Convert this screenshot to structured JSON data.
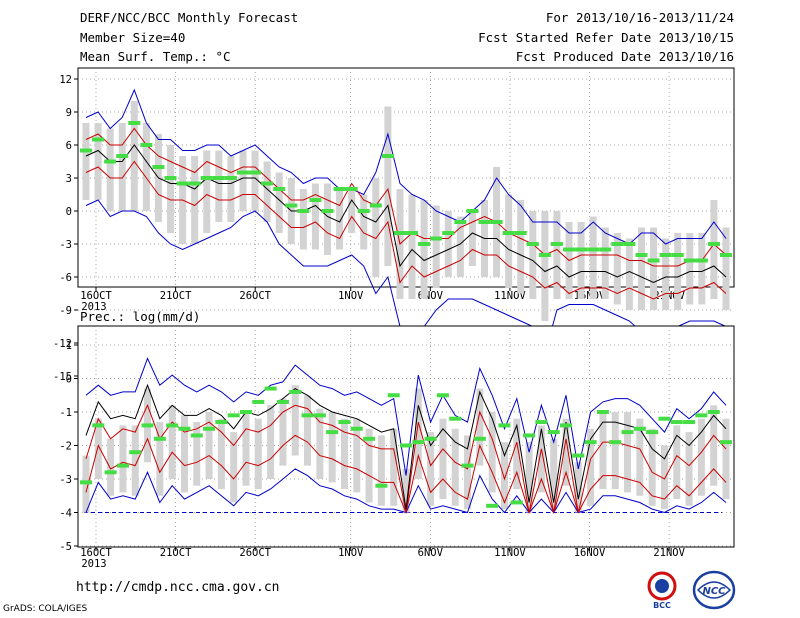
{
  "header": {
    "title": "DERF/NCC/BCC Monthly Forecast",
    "member_size": "Member Size=40",
    "variable": "Mean Surf. Temp.: °C",
    "period": "For 2013/10/16-2013/11/24",
    "started": "Fcst Started Refer Date 2013/10/15",
    "produced": "Fcst Produced Date 2013/10/16"
  },
  "footer": {
    "url": "http://cmdp.ncc.cma.gov.cn",
    "grads": "GrADS: COLA/IGES",
    "logo_bcc": "BCC",
    "logo_ncc": "NCC"
  },
  "colors": {
    "envelope": "#0000cc",
    "inner": "#cc0000",
    "mean": "#000000",
    "box": "#d3d3d3",
    "marker": "#44dd44",
    "grid": "#888888"
  },
  "chart_data": [
    {
      "type": "line",
      "ylabel": "",
      "ylim": [
        -15,
        12
      ],
      "yticks": [
        12,
        9,
        6,
        3,
        0,
        -3,
        -6,
        -9,
        -12,
        -15
      ],
      "x_tick_labels": [
        "16OCT",
        "21OCT",
        "26OCT",
        "1NOV",
        "6NOV",
        "11NOV",
        "16NOV",
        "21NOV"
      ],
      "x_year_label": "2013",
      "x_tick_day_index": [
        0,
        5,
        10,
        16,
        21,
        26,
        31,
        36
      ],
      "grid": true,
      "series": [
        {
          "role": "envelope_upper",
          "values": [
            8.5,
            9,
            7.5,
            8.5,
            11,
            8,
            6.5,
            6.5,
            5.5,
            5.5,
            6,
            6,
            5,
            5.5,
            6,
            5,
            4,
            3.5,
            2.5,
            3,
            3,
            2,
            2,
            1.5,
            3.5,
            7,
            2.5,
            1.5,
            1,
            0,
            -0.5,
            -1,
            0,
            1,
            3,
            1.5,
            0.5,
            -1,
            -1,
            -1,
            -2,
            -2,
            -1,
            -2,
            -2.5,
            -3,
            -2,
            -2,
            -3,
            -2.5,
            -2.5,
            -2.5,
            -1,
            -2.5
          ]
        },
        {
          "role": "inner_upper",
          "values": [
            6.5,
            7,
            6,
            6,
            7.5,
            6,
            5,
            4.5,
            4,
            3.5,
            4.5,
            4,
            3.5,
            4,
            4,
            3,
            2,
            1,
            1,
            1.5,
            1,
            0.5,
            2.5,
            1,
            0.5,
            2,
            -3,
            -2,
            -2.5,
            -2.5,
            -2.5,
            -1.5,
            -1,
            -0.5,
            -1,
            -2,
            -2.5,
            -3,
            -4,
            -3.5,
            -4.5,
            -4,
            -4,
            -4,
            -4,
            -4.5,
            -4.5,
            -5,
            -5,
            -5,
            -4.5,
            -4.5,
            -3,
            -4
          ]
        },
        {
          "role": "mean",
          "values": [
            5,
            5.5,
            4.5,
            4.5,
            6,
            4.5,
            3,
            2.5,
            2.5,
            2,
            3,
            2.5,
            2.5,
            3,
            3,
            2,
            1,
            0,
            0,
            0.5,
            -0.5,
            -1,
            1,
            -0.5,
            -1,
            0.5,
            -5,
            -3.5,
            -4.5,
            -4,
            -3.5,
            -3,
            -2,
            -2.5,
            -2.5,
            -3.5,
            -4,
            -4.5,
            -5.5,
            -5,
            -6,
            -5.5,
            -5.5,
            -5.5,
            -6,
            -5.5,
            -6,
            -6.5,
            -6,
            -6,
            -5.5,
            -5.5,
            -5,
            -6
          ]
        },
        {
          "role": "inner_lower",
          "values": [
            3.5,
            4,
            3,
            3,
            4.5,
            3,
            1.5,
            1,
            1,
            0.5,
            1.5,
            1,
            1,
            1.5,
            1.5,
            0.5,
            -0.5,
            -1.5,
            -1.5,
            -1,
            -2,
            -2.5,
            -0.5,
            -2,
            -2.5,
            -1,
            -6.5,
            -5,
            -6,
            -5.5,
            -5,
            -4.5,
            -3.5,
            -4,
            -4,
            -5,
            -5.5,
            -6,
            -7,
            -6.5,
            -7.5,
            -7,
            -7,
            -7,
            -7.5,
            -7,
            -7.5,
            -8,
            -7.5,
            -7.5,
            -7,
            -7,
            -6.5,
            -7.5
          ]
        },
        {
          "role": "envelope_lower",
          "values": [
            0.5,
            1,
            -0.5,
            0,
            0,
            -0.5,
            -2,
            -3,
            -3.5,
            -3,
            -2.5,
            -2,
            -1.5,
            -0.5,
            0,
            -1,
            -3,
            -4,
            -5,
            -5,
            -5,
            -4.5,
            -4,
            -5,
            -7.5,
            -6,
            -10.5,
            -10.5,
            -10.5,
            -9,
            -8,
            -8,
            -8,
            -8.5,
            -9,
            -9.5,
            -10,
            -10.5,
            -13,
            -9,
            -8.5,
            -8.5,
            -8.5,
            -9,
            -9.5,
            -10,
            -11,
            -11,
            -11,
            -10.5,
            -10,
            -10,
            -10,
            -10.5
          ]
        },
        {
          "role": "box_top",
          "values": [
            8,
            8,
            7.5,
            8,
            10,
            8,
            7,
            6,
            5,
            5,
            5.5,
            5.5,
            5,
            5.5,
            5.5,
            4.5,
            3.5,
            3,
            2,
            2.5,
            2.5,
            2,
            2,
            1.5,
            3,
            9.5,
            2,
            1.5,
            1,
            0.5,
            0,
            -0.5,
            0,
            1,
            4,
            1.5,
            1,
            0,
            0,
            0,
            -1,
            -1,
            -0.5,
            -1.5,
            -2,
            -2.5,
            -1.5,
            -1.5,
            -2.5,
            -2,
            -2,
            -2,
            1,
            -1.5
          ]
        },
        {
          "role": "box_bottom",
          "values": [
            1,
            1,
            0,
            0,
            0,
            0,
            -1,
            -2,
            -3,
            -3,
            -2,
            -1,
            -1,
            0,
            0,
            -1,
            -2,
            -3,
            -3.5,
            -3.5,
            -4,
            -3.5,
            -2,
            -3.5,
            -6,
            -5,
            -8,
            -8,
            -8,
            -7,
            -6,
            -6,
            -5,
            -6,
            -6,
            -7,
            -7.5,
            -8,
            -10,
            -8,
            -8,
            -8,
            -8,
            -8,
            -8.5,
            -9,
            -9,
            -9,
            -9,
            -9,
            -8.5,
            -8.5,
            -8,
            -9
          ]
        },
        {
          "role": "marker",
          "values": [
            5.5,
            6.5,
            4.5,
            5,
            8,
            6,
            4,
            3,
            2.5,
            2.5,
            3,
            3,
            3,
            3.5,
            3.5,
            2.5,
            2,
            0.5,
            0,
            1,
            0,
            2,
            2,
            0,
            0.5,
            5,
            -2,
            -2,
            -3,
            -2.5,
            -2,
            -1,
            0,
            -1,
            -1,
            -2,
            -2,
            -3,
            -4,
            -3,
            -3.5,
            -3.5,
            -3.5,
            -3.5,
            -3,
            -3,
            -4,
            -4.5,
            -4,
            -4,
            -4.5,
            -4.5,
            -3,
            -4
          ]
        }
      ]
    },
    {
      "type": "line",
      "ylabel": "Prec.: log(mm/d)",
      "ylim": [
        -5,
        1
      ],
      "yticks": [
        1,
        0,
        -1,
        -2,
        -3,
        -4,
        -5
      ],
      "x_tick_labels": [
        "16OCT",
        "21OCT",
        "26OCT",
        "1NOV",
        "6NOV",
        "11NOV",
        "16NOV",
        "21NOV"
      ],
      "x_year_label": "2013",
      "x_tick_day_index": [
        0,
        5,
        10,
        16,
        21,
        26,
        31,
        36
      ],
      "grid": true,
      "baseline": -4,
      "series": [
        {
          "role": "envelope_upper",
          "values": [
            -0.5,
            -0.2,
            -0.5,
            -0.4,
            -0.4,
            0.6,
            -0.2,
            0.1,
            -0.2,
            -0.4,
            -0.2,
            -0.4,
            -0.7,
            -0.4,
            -0.5,
            -0.2,
            -0.1,
            0.4,
            0.1,
            -0.2,
            -0.3,
            -0.5,
            -0.4,
            -0.6,
            -0.8,
            -0.6,
            -2.9,
            0.1,
            -1.3,
            -0.5,
            -1.1,
            -1.3,
            0.3,
            -0.5,
            -1.5,
            -0.6,
            -2.2,
            -0.8,
            -1.9,
            -0.5,
            -2.7,
            -1,
            -0.7,
            -0.6,
            -0.6,
            -0.8,
            -1.2,
            -1.6,
            -0.9,
            -1.2,
            -0.9,
            -0.4,
            -0.8
          ]
        },
        {
          "role": "mean",
          "values": [
            -1.7,
            -0.7,
            -1.2,
            -1.1,
            -1.2,
            -0.2,
            -1.2,
            -0.8,
            -1.1,
            -1.1,
            -0.9,
            -1.1,
            -1.5,
            -1,
            -1.1,
            -0.9,
            -0.6,
            -0.3,
            -0.5,
            -0.8,
            -1,
            -1.1,
            -1.2,
            -1.4,
            -1.6,
            -1.5,
            -3.9,
            -0.8,
            -2,
            -1.5,
            -1.9,
            -2.1,
            -0.4,
            -1.2,
            -2.3,
            -1.4,
            -3.7,
            -1.5,
            -3.7,
            -1.3,
            -3.6,
            -1.8,
            -1.3,
            -1.3,
            -1.4,
            -1.5,
            -2.1,
            -2.4,
            -1.7,
            -2,
            -1.6,
            -1.1,
            -1.5
          ]
        },
        {
          "role": "inner_upper",
          "values": [
            -2.4,
            -1.2,
            -1.8,
            -1.5,
            -1.6,
            -0.8,
            -1.8,
            -1.3,
            -1.6,
            -1.5,
            -1.3,
            -1.6,
            -2,
            -1.5,
            -1.6,
            -1.4,
            -1,
            -0.8,
            -0.9,
            -1.3,
            -1.4,
            -1.6,
            -1.7,
            -2,
            -2.1,
            -2.1,
            -4,
            -1.3,
            -2.6,
            -2.1,
            -2.5,
            -2.7,
            -1,
            -1.8,
            -3,
            -1.9,
            -4,
            -2.1,
            -4,
            -1.8,
            -4,
            -2.4,
            -1.9,
            -1.9,
            -2,
            -2.1,
            -2.8,
            -3,
            -2.3,
            -2.6,
            -2.2,
            -1.7,
            -2.1
          ]
        },
        {
          "role": "inner_lower",
          "values": [
            -3.4,
            -2,
            -2.7,
            -2.5,
            -2.6,
            -1.8,
            -2.8,
            -2.2,
            -2.6,
            -2.5,
            -2.3,
            -2.6,
            -3,
            -2.5,
            -2.6,
            -2.4,
            -2,
            -1.7,
            -1.9,
            -2.3,
            -2.4,
            -2.6,
            -2.7,
            -2.9,
            -3.1,
            -3.1,
            -4,
            -2.3,
            -3.4,
            -3,
            -3.4,
            -3.6,
            -2,
            -2.8,
            -3.7,
            -2.8,
            -4,
            -3,
            -4,
            -2.8,
            -4,
            -3.3,
            -2.9,
            -2.9,
            -3,
            -3.1,
            -3.5,
            -3.6,
            -3.2,
            -3.5,
            -3.1,
            -2.7,
            -3.1
          ]
        },
        {
          "role": "envelope_lower",
          "values": [
            -4,
            -3.1,
            -3.6,
            -3.5,
            -3.6,
            -2.8,
            -3.7,
            -3.2,
            -3.6,
            -3.4,
            -3.2,
            -3.5,
            -3.8,
            -3.4,
            -3.5,
            -3.3,
            -3,
            -2.7,
            -2.9,
            -3.2,
            -3.3,
            -3.5,
            -3.6,
            -3.8,
            -3.9,
            -3.9,
            -4,
            -3.2,
            -3.9,
            -3.8,
            -3.9,
            -4,
            -2.9,
            -3.6,
            -4,
            -3.5,
            -4,
            -3.6,
            -4,
            -3.4,
            -4,
            -3.9,
            -3.5,
            -3.5,
            -3.6,
            -3.7,
            -3.9,
            -4,
            -3.8,
            -3.9,
            -3.7,
            -3.4,
            -3.7
          ]
        },
        {
          "role": "box_top",
          "values": [
            -2.3,
            -1.2,
            -1.8,
            -1.4,
            -1.4,
            -0.3,
            -1.3,
            -0.8,
            -1.1,
            -1.3,
            -1,
            -1.2,
            -1.6,
            -1,
            -1.2,
            -0.8,
            -0.6,
            -0.2,
            -0.5,
            -0.9,
            -1,
            -1.2,
            -1.2,
            -1.5,
            -1.7,
            -1.5,
            -2.7,
            -0.3,
            -1.6,
            -1.2,
            -1.5,
            -1.7,
            -0.3,
            -1,
            -1.9,
            -1.2,
            -1.9,
            -1.4,
            -1.8,
            -1.2,
            -2.5,
            -1.5,
            -1,
            -1,
            -1,
            -1.2,
            -1.5,
            -2,
            -1.4,
            -1.6,
            -1.2,
            -0.8,
            -1.2
          ]
        },
        {
          "role": "box_bottom",
          "values": [
            -4,
            -3,
            -3.5,
            -3.4,
            -3.5,
            -2.5,
            -3.5,
            -3,
            -3.4,
            -3.2,
            -3,
            -3.3,
            -3.7,
            -3.2,
            -3.3,
            -3,
            -2.6,
            -2.3,
            -2.6,
            -3,
            -3.1,
            -3.3,
            -3.4,
            -3.7,
            -3.8,
            -3.8,
            -4,
            -3,
            -3.8,
            -3.6,
            -3.8,
            -3.9,
            -2.6,
            -3.4,
            -3.9,
            -3.3,
            -4,
            -3.4,
            -3.9,
            -3.2,
            -4,
            -3.8,
            -3.3,
            -3.3,
            -3.4,
            -3.5,
            -3.8,
            -3.9,
            -3.6,
            -3.8,
            -3.5,
            -3.2,
            -3.6
          ]
        },
        {
          "role": "marker",
          "values": [
            -3.1,
            -1.4,
            -2.8,
            -2.6,
            -2.2,
            -1.4,
            -1.8,
            -1.4,
            -1.5,
            -1.7,
            -1.5,
            -1.3,
            -1.1,
            -1,
            -0.7,
            -0.3,
            -0.7,
            -0.4,
            -1.1,
            -1.1,
            -1.6,
            -1.3,
            -1.5,
            -1.8,
            -3.2,
            -0.5,
            -2,
            -1.9,
            -1.8,
            -0.5,
            -1.2,
            -2.6,
            -1.8,
            -3.8,
            -1.4,
            -3.7,
            -1.7,
            -1.3,
            -1.6,
            -1.4,
            -2.3,
            -1.9,
            -1,
            -1.9,
            -1.6,
            -1.5,
            -1.6,
            -1.2,
            -1.3,
            -1.3,
            -1.1,
            -1,
            -1.9
          ]
        }
      ]
    }
  ]
}
